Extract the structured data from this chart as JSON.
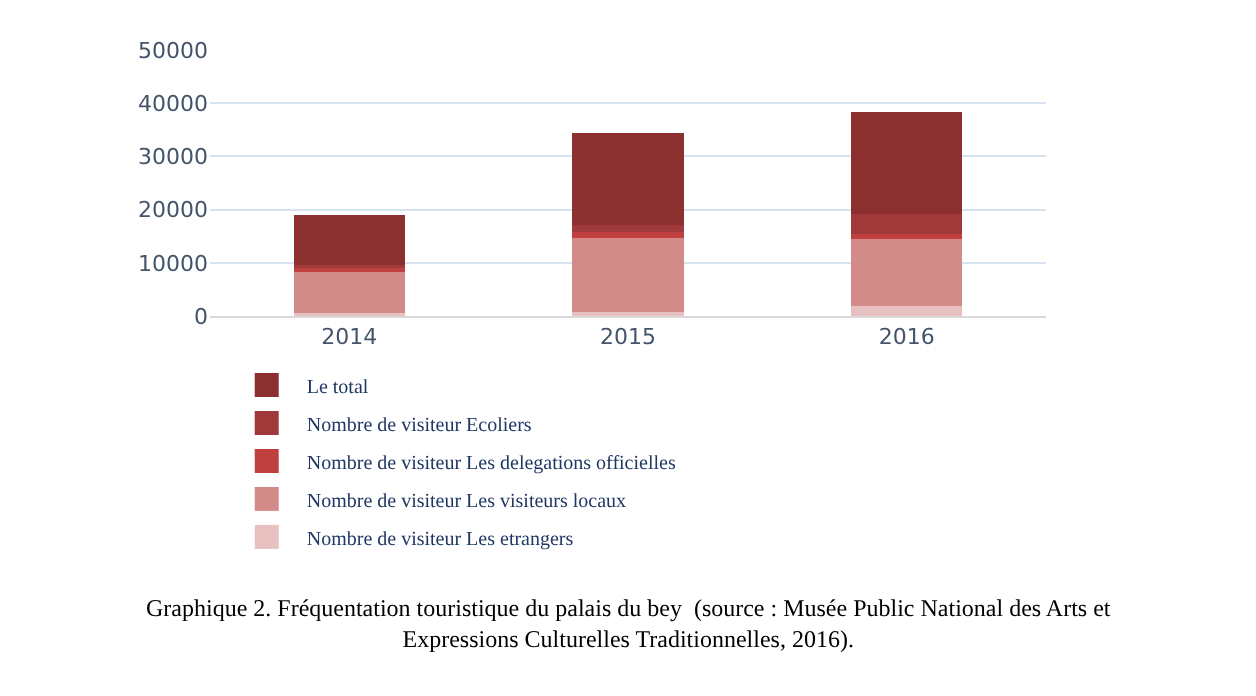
{
  "chart_data": {
    "type": "bar",
    "stacked": true,
    "categories": [
      "2014",
      "2015",
      "2016"
    ],
    "series": [
      {
        "name": "Nombre de visiteur Les etrangers",
        "color": "#e6c1bf",
        "values": [
          500,
          800,
          1900
        ]
      },
      {
        "name": "Nombre de visiteur Les visiteurs locaux",
        "color": "#d28b89",
        "values": [
          8000,
          14200,
          12600
        ]
      },
      {
        "name": "Nombre de visiteur Les delegations officielles",
        "color": "#c0403f",
        "values": [
          600,
          700,
          900
        ]
      },
      {
        "name": "Nombre de visiteur Ecoliers",
        "color": "#a03a3a",
        "values": [
          400,
          1500,
          3700
        ]
      },
      {
        "name": "Le total",
        "color": "#8b2f2f",
        "values": [
          9500,
          17200,
          19300
        ]
      }
    ],
    "ylim": [
      0,
      50000
    ],
    "yticks": [
      0,
      10000,
      20000,
      30000,
      40000,
      50000
    ],
    "grid": "y",
    "legend": "bottom",
    "annotations": [
      "Graphique 2. Fréquentation touristique du palais du bey  (source : Musée Public National des Arts et Expressions Culturelles Traditionnelles, 2016)."
    ]
  }
}
